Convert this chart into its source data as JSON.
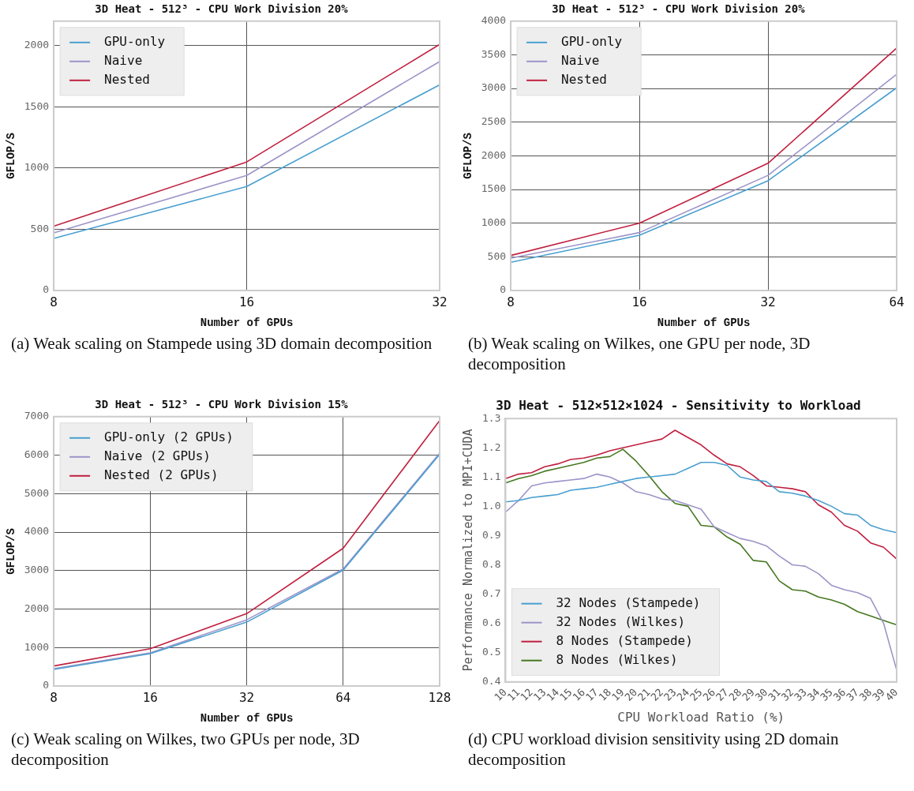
{
  "chart_data": [
    {
      "type": "line",
      "title": "3D Heat - 512³ - CPU Work Division 20%",
      "xlabel": "Number of GPUs",
      "ylabel": "GFLOP/S",
      "categories": [
        "8",
        "16",
        "32"
      ],
      "ylim": [
        0,
        2200
      ],
      "yticks": [
        0,
        500,
        1000,
        1500,
        2000
      ],
      "grid": true,
      "legend": "top left",
      "marker": "none",
      "line_style": "solid",
      "series": [
        {
          "name": "GPU-only",
          "color": "#4a9fd0",
          "values": [
            425,
            850,
            1680
          ]
        },
        {
          "name": "Naive",
          "color": "#9d94c8",
          "values": [
            470,
            940,
            1870
          ]
        },
        {
          "name": "Nested",
          "color": "#c0203f",
          "values": [
            525,
            1050,
            2010
          ]
        }
      ],
      "annotations": [
        "(a) Weak scaling on Stampede using 3D domain decomposition"
      ]
    },
    {
      "type": "line",
      "title": "3D Heat - 512³ - CPU Work Division 20%",
      "xlabel": "Number of GPUs",
      "ylabel": "GFLOP/S",
      "categories": [
        "8",
        "16",
        "32",
        "64"
      ],
      "ylim": [
        0,
        4000
      ],
      "yticks": [
        0,
        500,
        1000,
        1500,
        2000,
        2500,
        3000,
        3500,
        4000
      ],
      "grid": true,
      "legend": "top left",
      "marker": "none",
      "line_style": "solid",
      "series": [
        {
          "name": "GPU-only",
          "color": "#4a9fd0",
          "values": [
            420,
            820,
            1630,
            3010
          ]
        },
        {
          "name": "Naive",
          "color": "#9d94c8",
          "values": [
            480,
            860,
            1710,
            3210
          ]
        },
        {
          "name": "Nested",
          "color": "#c0203f",
          "values": [
            520,
            1000,
            1890,
            3600
          ]
        }
      ],
      "annotations": [
        "(b) Weak scaling on Wilkes, one GPU per node, 3D decomposition"
      ]
    },
    {
      "type": "line",
      "title": "3D Heat - 512³ - CPU Work Division 15%",
      "xlabel": "Number of GPUs",
      "ylabel": "GFLOP/S",
      "categories": [
        "8",
        "16",
        "32",
        "64",
        "128"
      ],
      "ylim": [
        0,
        7000
      ],
      "yticks": [
        0,
        1000,
        2000,
        3000,
        4000,
        5000,
        6000,
        7000
      ],
      "grid": true,
      "legend": "top left",
      "marker": "none",
      "line_style": "solid",
      "series": [
        {
          "name": "GPU-only (2 GPUs)",
          "color": "#4a9fd0",
          "values": [
            430,
            840,
            1660,
            3010,
            6020
          ]
        },
        {
          "name": "Naive (2 GPUs)",
          "color": "#9d94c8",
          "values": [
            450,
            860,
            1720,
            3040,
            6050
          ]
        },
        {
          "name": "Nested (2 GPUs)",
          "color": "#c0203f",
          "values": [
            520,
            970,
            1880,
            3580,
            6900
          ]
        }
      ],
      "annotations": [
        "(c) Weak scaling on Wilkes, two GPUs per node, 3D decomposition"
      ]
    },
    {
      "type": "line",
      "title": "3D Heat - 512×512×1024 - Sensitivity to Workload",
      "xlabel": "CPU Workload Ratio (%)",
      "ylabel": "Performance Normalized to MPI+CUDA",
      "categories": [
        "10",
        "11",
        "12",
        "13",
        "14",
        "15",
        "16",
        "17",
        "18",
        "19",
        "20",
        "21",
        "22",
        "23",
        "24",
        "25",
        "26",
        "27",
        "28",
        "29",
        "30",
        "31",
        "32",
        "33",
        "34",
        "35",
        "36",
        "37",
        "38",
        "39",
        "40"
      ],
      "ylim": [
        0.4,
        1.3
      ],
      "yticks": [
        {
          "value": 0.4,
          "label": "0.4"
        },
        {
          "value": 0.5,
          "label": "0.5"
        },
        {
          "value": 0.6,
          "label": "0.6"
        },
        {
          "value": 0.7,
          "label": "0.7"
        },
        {
          "value": 0.8,
          "label": "0.8"
        },
        {
          "value": 0.9,
          "label": "0.9"
        },
        {
          "value": 1.0,
          "label": "1.0"
        },
        {
          "value": 1.1,
          "label": "1.1"
        },
        {
          "value": 1.2,
          "label": "1.2"
        },
        {
          "value": 1.3,
          "label": "1.3"
        }
      ],
      "legend": "bottom left",
      "marker": "none",
      "line_style": "solid",
      "series": [
        {
          "name": "32 Nodes (Stampede)",
          "color": "#4a9fd0",
          "values": [
            1.015,
            1.02,
            1.03,
            1.035,
            1.04,
            1.055,
            1.06,
            1.065,
            1.075,
            1.085,
            1.095,
            1.1,
            1.105,
            1.11,
            1.13,
            1.15,
            1.15,
            1.14,
            1.1,
            1.09,
            1.085,
            1.05,
            1.045,
            1.035,
            1.02,
            1.0,
            0.975,
            0.97,
            0.935,
            0.92,
            0.91
          ]
        },
        {
          "name": "32 Nodes (Wilkes)",
          "color": "#9d94c8",
          "values": [
            0.98,
            1.02,
            1.07,
            1.08,
            1.085,
            1.09,
            1.095,
            1.11,
            1.1,
            1.08,
            1.05,
            1.04,
            1.025,
            1.02,
            1.005,
            0.99,
            0.93,
            0.91,
            0.89,
            0.88,
            0.865,
            0.83,
            0.8,
            0.795,
            0.77,
            0.73,
            0.715,
            0.705,
            0.685,
            0.6,
            0.44
          ]
        },
        {
          "name": "8 Nodes (Stampede)",
          "color": "#c0203f",
          "values": [
            1.095,
            1.11,
            1.115,
            1.135,
            1.145,
            1.16,
            1.165,
            1.175,
            1.19,
            1.2,
            1.21,
            1.22,
            1.23,
            1.26,
            1.235,
            1.21,
            1.175,
            1.145,
            1.135,
            1.105,
            1.07,
            1.065,
            1.06,
            1.05,
            1.005,
            0.98,
            0.935,
            0.915,
            0.875,
            0.86,
            0.82
          ]
        },
        {
          "name": "8 Nodes (Wilkes)",
          "color": "#467821",
          "values": [
            1.08,
            1.095,
            1.105,
            1.12,
            1.13,
            1.14,
            1.15,
            1.165,
            1.17,
            1.195,
            1.155,
            1.105,
            1.05,
            1.01,
            1.0,
            0.935,
            0.93,
            0.895,
            0.87,
            0.815,
            0.81,
            0.745,
            0.715,
            0.71,
            0.69,
            0.68,
            0.665,
            0.64,
            0.625,
            0.61,
            0.595
          ]
        }
      ],
      "annotations": [
        "(d) CPU workload division sensitivity using 2D domain decomposition"
      ]
    }
  ]
}
